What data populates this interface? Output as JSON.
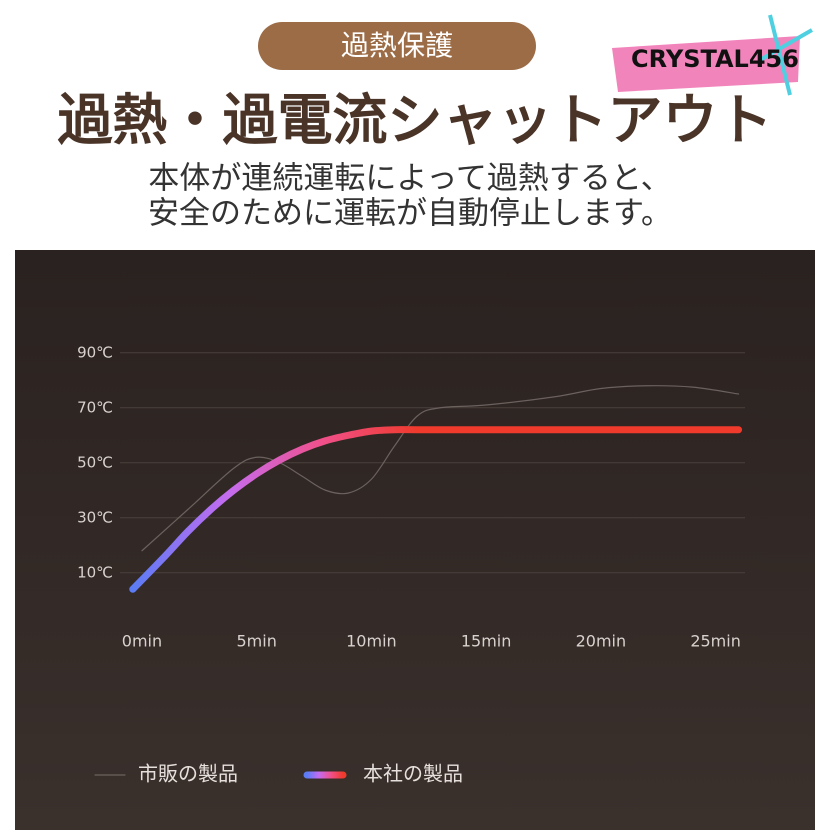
{
  "badge": "過熱保護",
  "watermark": "CRYSTAL456",
  "headline": "過熱・過電流シャットアウト",
  "description": [
    "本体が連続運転によって過熱すると、",
    "安全のために運転が自動停止します。"
  ],
  "chart_data": {
    "type": "line",
    "xlim": [
      -1,
      26.5
    ],
    "ylim": [
      -5,
      95
    ],
    "xticks": [
      {
        "value": 0,
        "label": "0min"
      },
      {
        "value": 5,
        "label": "5min"
      },
      {
        "value": 10,
        "label": "10min"
      },
      {
        "value": 15,
        "label": "15min"
      },
      {
        "value": 20,
        "label": "20min"
      },
      {
        "value": 25,
        "label": "25min"
      }
    ],
    "yticks": [
      {
        "value": 10,
        "label": "10℃"
      },
      {
        "value": 30,
        "label": "30℃"
      },
      {
        "value": 50,
        "label": "50℃"
      },
      {
        "value": 70,
        "label": "70℃"
      },
      {
        "value": 90,
        "label": "90℃"
      }
    ],
    "grid": true,
    "series": [
      {
        "name": "市販の製品",
        "color": "#6b625e",
        "width": 1.2,
        "x": [
          0,
          2,
          4,
          5,
          6,
          7,
          8,
          9,
          10,
          11,
          12,
          13,
          15,
          18,
          20,
          22,
          24,
          26
        ],
        "values": [
          18,
          33,
          48,
          52,
          50,
          45,
          40,
          39,
          44,
          56,
          67,
          70,
          71,
          74,
          77,
          78,
          77.5,
          75
        ]
      },
      {
        "name": "本社の製品",
        "color": "#ef3a2c",
        "gradient": [
          "#5b7cf5",
          "#c56cf0",
          "#f0508a",
          "#ef3a2c"
        ],
        "width": 7,
        "x": [
          -0.4,
          1,
          2,
          3,
          4,
          5,
          6,
          7,
          8,
          9,
          10,
          11,
          12,
          15,
          20,
          26
        ],
        "values": [
          4,
          16,
          25,
          33,
          40,
          46,
          51,
          55,
          58,
          60,
          61.5,
          62,
          62,
          62,
          62,
          62
        ]
      }
    ]
  }
}
